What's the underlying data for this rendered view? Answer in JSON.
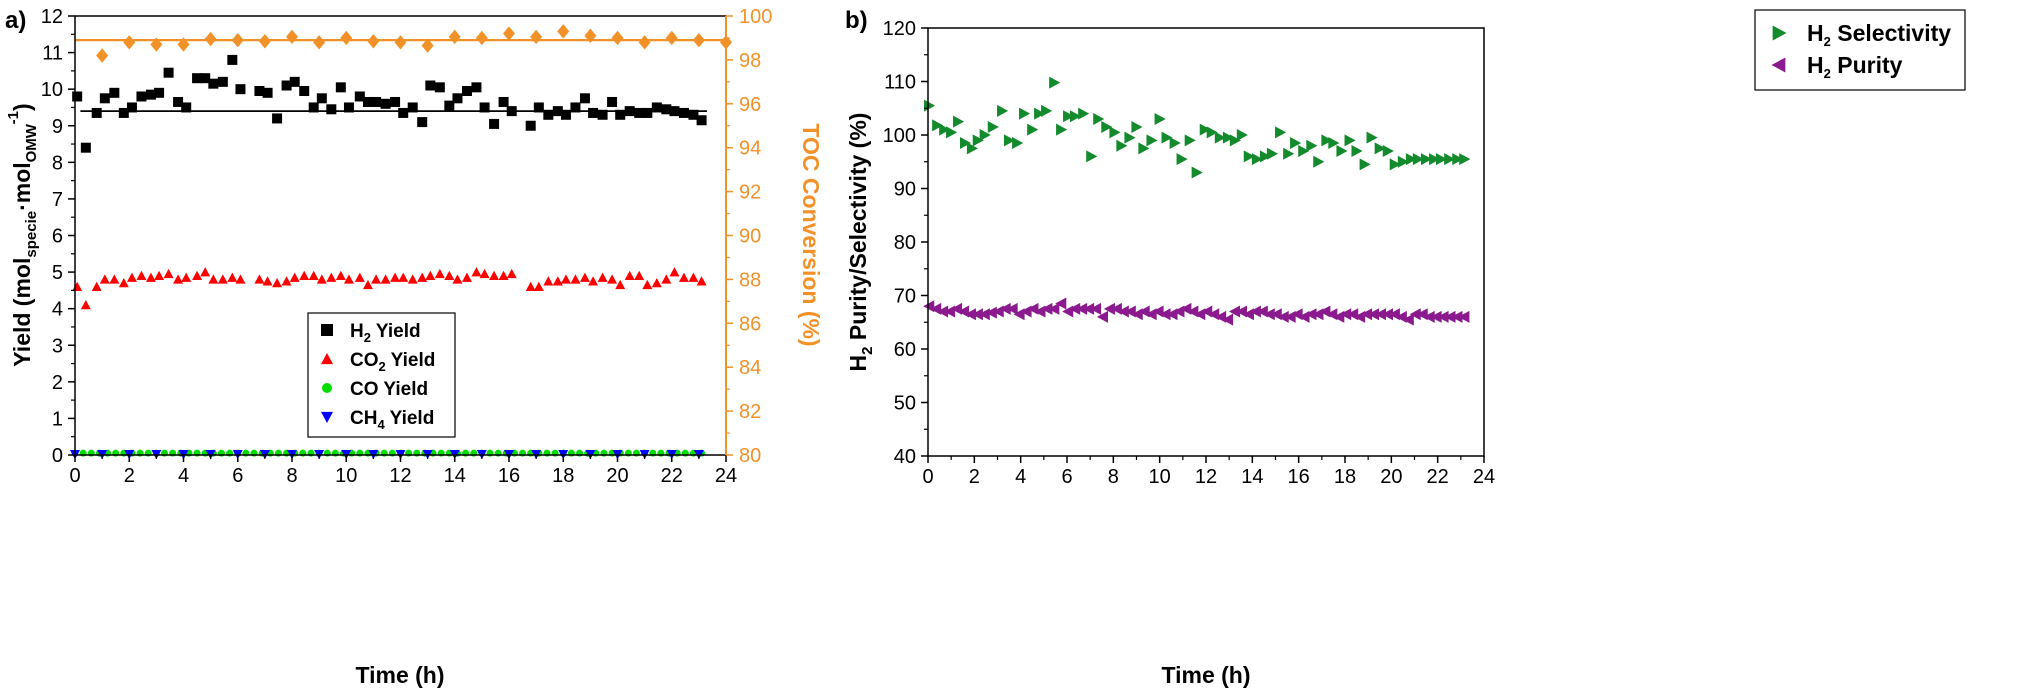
{
  "chart_data": [
    {
      "id": "a",
      "panel_label": "a)",
      "type": "scatter",
      "xlabel": "Time (h)",
      "ylabel": {
        "pre": "Yield (mol",
        "sub1": "specie",
        "mid": "·mol",
        "sub2": "OMW",
        "sup": "-1",
        "post": ")"
      },
      "y2label": "TOC Conversion (%)",
      "xlim": [
        0,
        24
      ],
      "ylim": [
        0,
        12
      ],
      "y2lim": [
        80,
        100
      ],
      "xticks": [
        "0",
        "2",
        "4",
        "6",
        "8",
        "10",
        "12",
        "14",
        "16",
        "18",
        "20",
        "22",
        "24"
      ],
      "yticks": [
        "0",
        "1",
        "2",
        "3",
        "4",
        "5",
        "6",
        "7",
        "8",
        "9",
        "10",
        "11",
        "12"
      ],
      "y2ticks": [
        "80",
        "82",
        "84",
        "86",
        "88",
        "90",
        "92",
        "94",
        "96",
        "98",
        "100"
      ],
      "h2_fit_line": 9.4,
      "toc_fit_line": 98.9,
      "legend": [
        {
          "pre": "H",
          "sub": "2",
          "post": " Yield",
          "color": "#000000",
          "marker": "square"
        },
        {
          "pre": "CO",
          "sub": "2",
          "post": " Yield",
          "color": "#ff0000",
          "marker": "triangle-up"
        },
        {
          "pre": "CO Yield",
          "sub": "",
          "post": "",
          "color": "#00dd00",
          "marker": "circle"
        },
        {
          "pre": "CH",
          "sub": "4",
          "post": " Yield",
          "color": "#0000ff",
          "marker": "triangle-down"
        }
      ],
      "series": [
        {
          "name": "H2 Yield",
          "color": "#000000",
          "marker": "square",
          "x": [
            0.08,
            0.4,
            0.8,
            1.1,
            1.45,
            1.8,
            2.1,
            2.45,
            2.8,
            3.1,
            3.45,
            3.8,
            4.1,
            4.5,
            4.8,
            5.1,
            5.45,
            5.8,
            6.1,
            6.8,
            7.1,
            7.45,
            7.8,
            8.1,
            8.45,
            8.8,
            9.1,
            9.45,
            9.8,
            10.1,
            10.5,
            10.8,
            11.1,
            11.45,
            11.8,
            12.1,
            12.45,
            12.8,
            13.1,
            13.45,
            13.8,
            14.1,
            14.45,
            14.8,
            15.1,
            15.45,
            15.8,
            16.1,
            16.8,
            17.1,
            17.45,
            17.8,
            18.1,
            18.45,
            18.8,
            19.1,
            19.45,
            19.8,
            20.1,
            20.45,
            20.8,
            21.1,
            21.45,
            21.8,
            22.1,
            22.45,
            22.8,
            23.1
          ],
          "y": [
            9.8,
            8.4,
            9.35,
            9.75,
            9.9,
            9.35,
            9.5,
            9.8,
            9.85,
            9.9,
            10.45,
            9.65,
            9.5,
            10.3,
            10.3,
            10.15,
            10.2,
            10.8,
            10.0,
            9.95,
            9.9,
            9.2,
            10.1,
            10.2,
            9.95,
            9.5,
            9.75,
            9.45,
            10.05,
            9.5,
            9.8,
            9.65,
            9.65,
            9.6,
            9.65,
            9.35,
            9.5,
            9.1,
            10.1,
            10.05,
            9.55,
            9.75,
            9.95,
            10.05,
            9.5,
            9.05,
            9.65,
            9.4,
            9.0,
            9.5,
            9.3,
            9.4,
            9.3,
            9.5,
            9.75,
            9.35,
            9.3,
            9.65,
            9.3,
            9.4,
            9.35,
            9.35,
            9.5,
            9.45,
            9.4,
            9.35,
            9.3,
            9.15
          ]
        },
        {
          "name": "CO2 Yield",
          "color": "#ff0000",
          "marker": "triangle-up",
          "x": [
            0.08,
            0.4,
            0.8,
            1.1,
            1.45,
            1.8,
            2.1,
            2.45,
            2.8,
            3.1,
            3.45,
            3.8,
            4.1,
            4.5,
            4.8,
            5.1,
            5.45,
            5.8,
            6.1,
            6.8,
            7.1,
            7.45,
            7.8,
            8.1,
            8.45,
            8.8,
            9.1,
            9.45,
            9.8,
            10.1,
            10.5,
            10.8,
            11.1,
            11.45,
            11.8,
            12.1,
            12.45,
            12.8,
            13.1,
            13.45,
            13.8,
            14.1,
            14.45,
            14.8,
            15.1,
            15.45,
            15.8,
            16.1,
            16.8,
            17.1,
            17.45,
            17.8,
            18.1,
            18.45,
            18.8,
            19.1,
            19.45,
            19.8,
            20.1,
            20.45,
            20.8,
            21.1,
            21.45,
            21.8,
            22.1,
            22.45,
            22.8,
            23.1
          ],
          "y": [
            4.6,
            4.1,
            4.6,
            4.8,
            4.8,
            4.7,
            4.85,
            4.9,
            4.85,
            4.9,
            4.95,
            4.8,
            4.85,
            4.9,
            5.0,
            4.8,
            4.8,
            4.85,
            4.8,
            4.8,
            4.75,
            4.7,
            4.75,
            4.85,
            4.9,
            4.9,
            4.8,
            4.85,
            4.9,
            4.8,
            4.85,
            4.65,
            4.8,
            4.8,
            4.85,
            4.85,
            4.8,
            4.85,
            4.9,
            4.95,
            4.9,
            4.8,
            4.85,
            5.0,
            4.95,
            4.9,
            4.9,
            4.95,
            4.6,
            4.6,
            4.75,
            4.75,
            4.8,
            4.8,
            4.85,
            4.75,
            4.85,
            4.8,
            4.65,
            4.9,
            4.9,
            4.65,
            4.7,
            4.8,
            5.0,
            4.85,
            4.85,
            4.75
          ]
        },
        {
          "name": "CO Yield",
          "color": "#00dd00",
          "marker": "circle",
          "x": [
            0,
            0.3,
            0.6,
            0.9,
            1.2,
            1.5,
            1.8,
            2.1,
            2.4,
            2.7,
            3.0,
            3.3,
            3.6,
            3.9,
            4.2,
            4.5,
            4.8,
            5.1,
            5.4,
            5.7,
            6.0,
            6.3,
            6.6,
            6.9,
            7.2,
            7.5,
            7.8,
            8.1,
            8.4,
            8.7,
            9.0,
            9.3,
            9.6,
            9.9,
            10.2,
            10.5,
            10.8,
            11.1,
            11.4,
            11.7,
            12.0,
            12.3,
            12.6,
            12.9,
            13.2,
            13.5,
            13.8,
            14.1,
            14.4,
            14.7,
            15.0,
            15.3,
            15.6,
            15.9,
            16.2,
            16.5,
            16.8,
            17.1,
            17.4,
            17.7,
            18.0,
            18.3,
            18.6,
            18.9,
            19.2,
            19.5,
            19.8,
            20.1,
            20.4,
            20.7,
            21.0,
            21.3,
            21.6,
            21.9,
            22.2,
            22.5,
            22.8,
            23.1
          ],
          "y": [
            0.05,
            0.05,
            0.05,
            0.05,
            0.05,
            0.05,
            0.05,
            0.05,
            0.05,
            0.05,
            0.05,
            0.05,
            0.05,
            0.05,
            0.05,
            0.05,
            0.05,
            0.05,
            0.05,
            0.05,
            0.05,
            0.05,
            0.05,
            0.05,
            0.05,
            0.05,
            0.05,
            0.05,
            0.05,
            0.05,
            0.05,
            0.05,
            0.05,
            0.05,
            0.05,
            0.05,
            0.05,
            0.05,
            0.05,
            0.05,
            0.05,
            0.05,
            0.05,
            0.05,
            0.05,
            0.05,
            0.05,
            0.05,
            0.05,
            0.05,
            0.05,
            0.05,
            0.05,
            0.05,
            0.05,
            0.05,
            0.05,
            0.05,
            0.05,
            0.05,
            0.05,
            0.05,
            0.05,
            0.05,
            0.05,
            0.05,
            0.05,
            0.05,
            0.05,
            0.05,
            0.05,
            0.05,
            0.05,
            0.05,
            0.05,
            0.05,
            0.05,
            0.05
          ]
        },
        {
          "name": "CH4 Yield",
          "color": "#0000ff",
          "marker": "triangle-down",
          "x": [
            0,
            1,
            2,
            3,
            4,
            5,
            6,
            7,
            8,
            9,
            10,
            11,
            12,
            13,
            14,
            15,
            16,
            17,
            18,
            19,
            20,
            21,
            22,
            23
          ],
          "y": [
            0.02,
            0.02,
            0.02,
            0.02,
            0.02,
            0.02,
            0.02,
            0.02,
            0.02,
            0.02,
            0.02,
            0.02,
            0.02,
            0.02,
            0.02,
            0.02,
            0.02,
            0.02,
            0.02,
            0.02,
            0.02,
            0.02,
            0.02,
            0.02
          ]
        },
        {
          "name": "TOC Conversion",
          "axis": "y2",
          "color": "#f39129",
          "marker": "diamond",
          "x": [
            1,
            2,
            3,
            4,
            5,
            6,
            7,
            8,
            9,
            10,
            11,
            12,
            13,
            14,
            15,
            16,
            17,
            18,
            19,
            20,
            21,
            22,
            23,
            24
          ],
          "y": [
            98.2,
            98.8,
            98.7,
            98.7,
            98.95,
            98.9,
            98.85,
            99.05,
            98.8,
            99.0,
            98.85,
            98.8,
            98.65,
            99.05,
            99.0,
            99.2,
            99.05,
            99.3,
            99.1,
            99.0,
            98.8,
            99.0,
            98.9,
            98.8
          ]
        }
      ]
    },
    {
      "id": "b",
      "panel_label": "b)",
      "type": "scatter",
      "xlabel": "Time (h)",
      "ylabel": {
        "pre": "H",
        "sub": "2",
        "post": " Purity/Selectivity (%)"
      },
      "xlim": [
        0,
        24
      ],
      "ylim": [
        40,
        120
      ],
      "xticks": [
        "0",
        "2",
        "4",
        "6",
        "8",
        "10",
        "12",
        "14",
        "16",
        "18",
        "20",
        "22",
        "24"
      ],
      "yticks": [
        "40",
        "50",
        "60",
        "70",
        "80",
        "90",
        "100",
        "110",
        "120"
      ],
      "legend": [
        {
          "pre": "H",
          "sub": "2",
          "post": " Selectivity",
          "color": "#138a2c",
          "marker": "triangle-right"
        },
        {
          "pre": "H",
          "sub": "2",
          "post": " Purity",
          "color": "#8b1a8f",
          "marker": "triangle-left"
        }
      ],
      "series": [
        {
          "name": "H2 Selectivity",
          "color": "#138a2c",
          "marker": "triangle-right",
          "x": [
            0.05,
            0.4,
            0.7,
            1.0,
            1.3,
            1.6,
            1.9,
            2.15,
            2.45,
            2.8,
            3.2,
            3.5,
            3.85,
            4.15,
            4.5,
            4.8,
            5.1,
            5.45,
            5.75,
            6.05,
            6.35,
            6.7,
            7.05,
            7.35,
            7.7,
            8.05,
            8.35,
            8.7,
            9.0,
            9.3,
            9.65,
            10.0,
            10.3,
            10.65,
            10.95,
            11.3,
            11.6,
            11.95,
            12.25,
            12.6,
            12.95,
            13.25,
            13.55,
            13.85,
            14.2,
            14.55,
            14.85,
            15.2,
            15.55,
            15.85,
            16.2,
            16.55,
            16.85,
            17.2,
            17.5,
            17.85,
            18.2,
            18.5,
            18.85,
            19.15,
            19.5,
            19.85,
            20.15,
            20.5,
            20.85,
            21.15,
            21.5,
            21.85,
            22.15,
            22.5,
            22.85,
            23.15
          ],
          "y": [
            105.5,
            101.8,
            101.0,
            100.5,
            102.5,
            98.5,
            97.5,
            99.0,
            100.0,
            101.5,
            104.5,
            99.0,
            98.5,
            104.0,
            101.0,
            104.0,
            104.5,
            109.8,
            101.0,
            103.5,
            103.5,
            104.0,
            96.0,
            103.0,
            101.5,
            100.5,
            98.0,
            99.5,
            101.5,
            97.5,
            99.0,
            103.0,
            99.5,
            98.5,
            95.5,
            99.0,
            93.0,
            101.0,
            100.5,
            99.5,
            99.5,
            99.0,
            100.0,
            96.0,
            95.5,
            96.0,
            96.5,
            100.5,
            96.5,
            98.5,
            97.0,
            98.0,
            95.0,
            99.0,
            98.5,
            97.0,
            99.0,
            97.0,
            94.5,
            99.5,
            97.5,
            97.0,
            94.5,
            95.0,
            95.5,
            95.5,
            95.5,
            95.5,
            95.5,
            95.5,
            95.5,
            95.5
          ]
        },
        {
          "name": "H2 Purity",
          "color": "#8b1a8f",
          "marker": "triangle-left",
          "x": [
            0.05,
            0.35,
            0.65,
            0.95,
            1.25,
            1.55,
            1.85,
            2.15,
            2.45,
            2.75,
            3.05,
            3.35,
            3.65,
            3.95,
            4.25,
            4.55,
            4.85,
            5.15,
            5.45,
            5.75,
            6.05,
            6.35,
            6.65,
            6.95,
            7.25,
            7.55,
            7.85,
            8.15,
            8.45,
            8.75,
            9.05,
            9.35,
            9.65,
            9.95,
            10.25,
            10.55,
            10.85,
            11.15,
            11.45,
            11.75,
            12.05,
            12.35,
            12.65,
            12.95,
            13.25,
            13.55,
            13.85,
            14.15,
            14.45,
            14.75,
            15.05,
            15.35,
            15.65,
            15.95,
            16.25,
            16.55,
            16.85,
            17.15,
            17.45,
            17.75,
            18.05,
            18.35,
            18.65,
            18.95,
            19.25,
            19.55,
            19.85,
            20.15,
            20.45,
            20.75,
            21.05,
            21.35,
            21.65,
            21.95,
            22.25,
            22.55,
            22.85,
            23.15
          ],
          "y": [
            68.0,
            67.5,
            67.0,
            67.0,
            67.5,
            67.0,
            66.5,
            66.5,
            66.5,
            66.8,
            67.0,
            67.5,
            67.5,
            66.5,
            67.0,
            67.5,
            67.0,
            67.5,
            67.5,
            68.5,
            67.0,
            67.5,
            67.5,
            67.5,
            67.5,
            66.0,
            67.5,
            67.5,
            67.0,
            67.0,
            66.5,
            67.0,
            66.5,
            67.0,
            66.5,
            66.5,
            67.0,
            67.5,
            67.0,
            66.5,
            67.0,
            66.5,
            66.0,
            65.5,
            67.0,
            67.0,
            66.5,
            67.0,
            67.0,
            66.5,
            66.5,
            66.0,
            66.0,
            66.5,
            66.0,
            66.5,
            66.5,
            67.0,
            66.5,
            66.0,
            66.5,
            66.5,
            66.0,
            66.5,
            66.5,
            66.5,
            66.5,
            66.5,
            66.0,
            65.5,
            66.5,
            66.5,
            66.0,
            66.0,
            66.0,
            66.0,
            66.0,
            66.0
          ]
        }
      ]
    }
  ]
}
